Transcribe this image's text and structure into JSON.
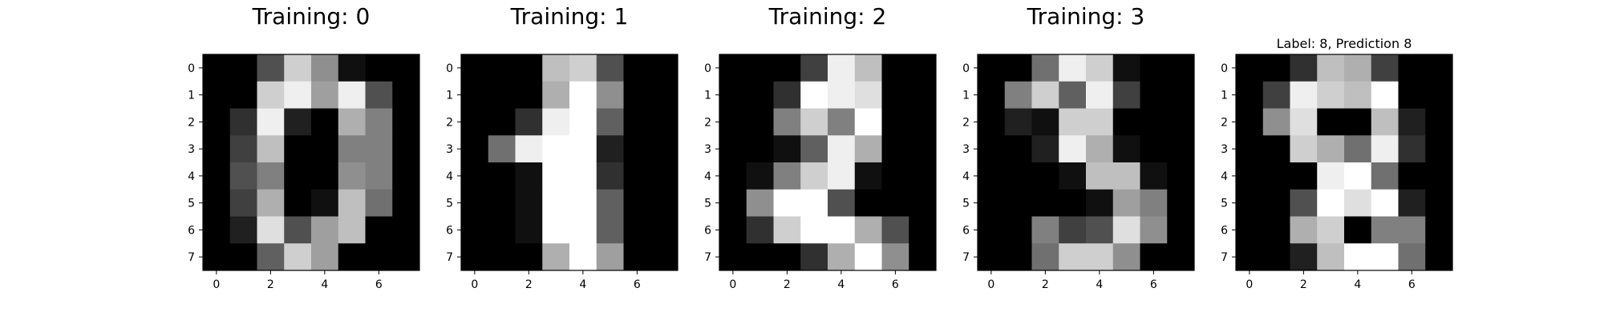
{
  "chart_data": [
    {
      "type": "heatmap",
      "title": "Training: 0",
      "colormap": "gray_r",
      "vmin": 0,
      "vmax": 16,
      "x_ticks": [
        0,
        2,
        4,
        6
      ],
      "y_ticks": [
        0,
        1,
        2,
        3,
        4,
        5,
        6,
        7
      ],
      "values": [
        [
          0,
          0,
          5,
          13,
          9,
          1,
          0,
          0
        ],
        [
          0,
          0,
          13,
          15,
          10,
          15,
          5,
          0
        ],
        [
          0,
          3,
          15,
          2,
          0,
          11,
          8,
          0
        ],
        [
          0,
          4,
          12,
          0,
          0,
          8,
          8,
          0
        ],
        [
          0,
          5,
          8,
          0,
          0,
          9,
          8,
          0
        ],
        [
          0,
          4,
          11,
          0,
          1,
          12,
          7,
          0
        ],
        [
          0,
          2,
          14,
          5,
          10,
          12,
          0,
          0
        ],
        [
          0,
          0,
          6,
          13,
          10,
          0,
          0,
          0
        ]
      ]
    },
    {
      "type": "heatmap",
      "title": "Training: 1",
      "colormap": "gray_r",
      "vmin": 0,
      "vmax": 16,
      "x_ticks": [
        0,
        2,
        4,
        6
      ],
      "y_ticks": [
        0,
        1,
        2,
        3,
        4,
        5,
        6,
        7
      ],
      "values": [
        [
          0,
          0,
          0,
          12,
          13,
          5,
          0,
          0
        ],
        [
          0,
          0,
          0,
          11,
          16,
          9,
          0,
          0
        ],
        [
          0,
          0,
          3,
          15,
          16,
          6,
          0,
          0
        ],
        [
          0,
          7,
          15,
          16,
          16,
          2,
          0,
          0
        ],
        [
          0,
          0,
          1,
          16,
          16,
          3,
          0,
          0
        ],
        [
          0,
          0,
          1,
          16,
          16,
          6,
          0,
          0
        ],
        [
          0,
          0,
          1,
          16,
          16,
          6,
          0,
          0
        ],
        [
          0,
          0,
          0,
          11,
          16,
          10,
          0,
          0
        ]
      ]
    },
    {
      "type": "heatmap",
      "title": "Training: 2",
      "colormap": "gray_r",
      "vmin": 0,
      "vmax": 16,
      "x_ticks": [
        0,
        2,
        4,
        6
      ],
      "y_ticks": [
        0,
        1,
        2,
        3,
        4,
        5,
        6,
        7
      ],
      "values": [
        [
          0,
          0,
          0,
          4,
          15,
          12,
          0,
          0
        ],
        [
          0,
          0,
          3,
          16,
          15,
          14,
          0,
          0
        ],
        [
          0,
          0,
          8,
          13,
          8,
          16,
          0,
          0
        ],
        [
          0,
          0,
          1,
          6,
          15,
          11,
          0,
          0
        ],
        [
          0,
          1,
          8,
          13,
          15,
          1,
          0,
          0
        ],
        [
          0,
          9,
          16,
          16,
          5,
          0,
          0,
          0
        ],
        [
          0,
          3,
          13,
          16,
          16,
          11,
          5,
          0
        ],
        [
          0,
          0,
          0,
          3,
          11,
          16,
          9,
          0
        ]
      ]
    },
    {
      "type": "heatmap",
      "title": "Training: 3",
      "colormap": "gray_r",
      "vmin": 0,
      "vmax": 16,
      "x_ticks": [
        0,
        2,
        4,
        6
      ],
      "y_ticks": [
        0,
        1,
        2,
        3,
        4,
        5,
        6,
        7
      ],
      "values": [
        [
          0,
          0,
          7,
          15,
          13,
          1,
          0,
          0
        ],
        [
          0,
          8,
          13,
          6,
          15,
          4,
          0,
          0
        ],
        [
          0,
          2,
          1,
          13,
          13,
          0,
          0,
          0
        ],
        [
          0,
          0,
          2,
          15,
          11,
          1,
          0,
          0
        ],
        [
          0,
          0,
          0,
          1,
          12,
          12,
          1,
          0
        ],
        [
          0,
          0,
          0,
          0,
          1,
          10,
          8,
          0
        ],
        [
          0,
          0,
          8,
          4,
          5,
          14,
          9,
          0
        ],
        [
          0,
          0,
          7,
          13,
          13,
          9,
          0,
          0
        ]
      ]
    },
    {
      "type": "heatmap",
      "title": "Label: 8, Prediction 8",
      "colormap": "gray_r",
      "vmin": 0,
      "vmax": 16,
      "x_ticks": [
        0,
        2,
        4,
        6
      ],
      "y_ticks": [
        0,
        1,
        2,
        3,
        4,
        5,
        6,
        7
      ],
      "values": [
        [
          0,
          0,
          3,
          12,
          11,
          4,
          0,
          0
        ],
        [
          0,
          4,
          15,
          13,
          12,
          16,
          0,
          0
        ],
        [
          0,
          9,
          14,
          0,
          0,
          12,
          2,
          0
        ],
        [
          0,
          0,
          13,
          11,
          7,
          15,
          3,
          0
        ],
        [
          0,
          0,
          0,
          15,
          16,
          7,
          0,
          0
        ],
        [
          0,
          0,
          5,
          16,
          14,
          16,
          2,
          0
        ],
        [
          0,
          0,
          11,
          13,
          0,
          8,
          8,
          0
        ],
        [
          0,
          0,
          2,
          12,
          16,
          16,
          7,
          0
        ]
      ]
    }
  ]
}
